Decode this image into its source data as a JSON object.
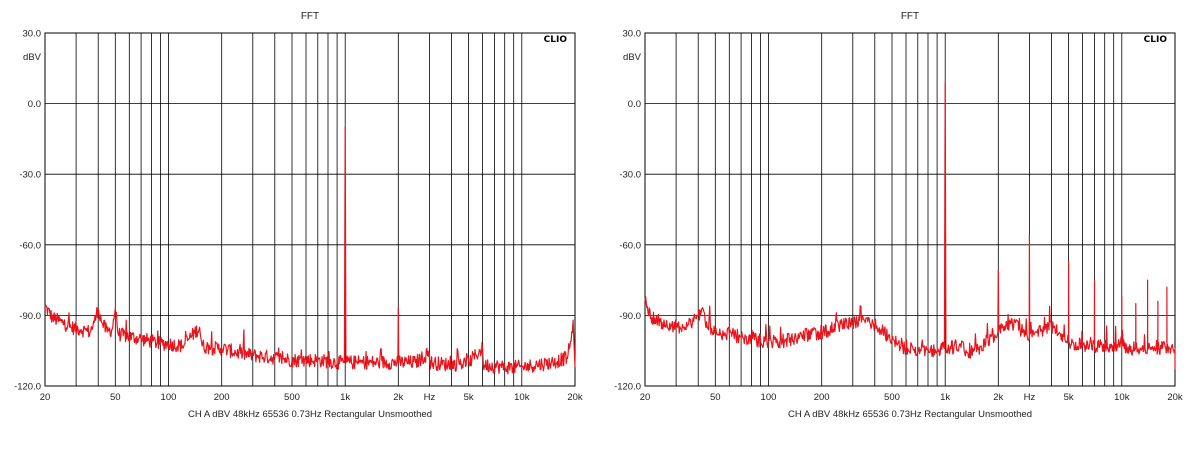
{
  "chart_data": [
    {
      "type": "line",
      "title": "FFT",
      "brand": "CLIO",
      "ylabel": "dBV",
      "xscale": "log",
      "xlim": [
        20,
        20000
      ],
      "ylim": [
        -120,
        30
      ],
      "grid": true,
      "yticks": [
        {
          "v": 30,
          "l": "30.0"
        },
        {
          "v": 0,
          "l": "0.0"
        },
        {
          "v": -30,
          "l": "-30.0"
        },
        {
          "v": -60,
          "l": "-60.0"
        },
        {
          "v": -90,
          "l": "-90.0"
        },
        {
          "v": -120,
          "l": "-120.0"
        }
      ],
      "xticks": [
        {
          "v": 20,
          "l": "20"
        },
        {
          "v": 50,
          "l": "50"
        },
        {
          "v": 100,
          "l": "100"
        },
        {
          "v": 200,
          "l": "200"
        },
        {
          "v": 500,
          "l": "500"
        },
        {
          "v": 1000,
          "l": "1k"
        },
        {
          "v": 2000,
          "l": "2k"
        },
        {
          "v": 3000,
          "l": "Hz"
        },
        {
          "v": 5000,
          "l": "5k"
        },
        {
          "v": 10000,
          "l": "10k"
        },
        {
          "v": 20000,
          "l": "20k"
        }
      ],
      "footer": "CH A   dBV   48kHz   65536   0.73Hz   Rectangular   Unsmoothed",
      "series": [
        {
          "color": "#e8141c",
          "points": [
            [
              20,
              -86
            ],
            [
              22,
              -91
            ],
            [
              25,
              -93
            ],
            [
              28,
              -95
            ],
            [
              32,
              -96
            ],
            [
              36,
              -97
            ],
            [
              38,
              -93
            ],
            [
              40,
              -87
            ],
            [
              42,
              -93
            ],
            [
              45,
              -97
            ],
            [
              48,
              -96
            ],
            [
              50,
              -87
            ],
            [
              52,
              -98
            ],
            [
              60,
              -99
            ],
            [
              70,
              -100
            ],
            [
              80,
              -101
            ],
            [
              90,
              -102
            ],
            [
              100,
              -102
            ],
            [
              120,
              -103
            ],
            [
              150,
              -95
            ],
            [
              155,
              -103
            ],
            [
              180,
              -104
            ],
            [
              200,
              -104
            ],
            [
              250,
              -106
            ],
            [
              300,
              -107
            ],
            [
              400,
              -108
            ],
            [
              500,
              -109
            ],
            [
              700,
              -109
            ],
            [
              900,
              -110
            ],
            [
              990,
              -110
            ],
            [
              1000,
              -10
            ],
            [
              1010,
              -110
            ],
            [
              1200,
              -110
            ],
            [
              1500,
              -110
            ],
            [
              1990,
              -110
            ],
            [
              2000,
              -87
            ],
            [
              2010,
              -110
            ],
            [
              2500,
              -110
            ],
            [
              3000,
              -106
            ],
            [
              3010,
              -110
            ],
            [
              4000,
              -111
            ],
            [
              5000,
              -110
            ],
            [
              6000,
              -104
            ],
            [
              6050,
              -111
            ],
            [
              8000,
              -112
            ],
            [
              10000,
              -112
            ],
            [
              12000,
              -111
            ],
            [
              15000,
              -110
            ],
            [
              18000,
              -108
            ],
            [
              19000,
              -101
            ],
            [
              19500,
              -92
            ],
            [
              20000,
              -112
            ]
          ]
        }
      ]
    },
    {
      "type": "line",
      "title": "FFT",
      "brand": "CLIO",
      "ylabel": "dBV",
      "xscale": "log",
      "xlim": [
        20,
        20000
      ],
      "ylim": [
        -120,
        30
      ],
      "grid": true,
      "yticks": [
        {
          "v": 30,
          "l": "30.0"
        },
        {
          "v": 0,
          "l": "0.0"
        },
        {
          "v": -30,
          "l": "-30.0"
        },
        {
          "v": -60,
          "l": "-60.0"
        },
        {
          "v": -90,
          "l": "-90.0"
        },
        {
          "v": -120,
          "l": "-120.0"
        }
      ],
      "xticks": [
        {
          "v": 20,
          "l": "20"
        },
        {
          "v": 50,
          "l": "50"
        },
        {
          "v": 100,
          "l": "100"
        },
        {
          "v": 200,
          "l": "200"
        },
        {
          "v": 500,
          "l": "500"
        },
        {
          "v": 1000,
          "l": "1k"
        },
        {
          "v": 2000,
          "l": "2k"
        },
        {
          "v": 3000,
          "l": "Hz"
        },
        {
          "v": 5000,
          "l": "5k"
        },
        {
          "v": 10000,
          "l": "10k"
        },
        {
          "v": 20000,
          "l": "20k"
        }
      ],
      "footer": "CH A   dBV   48kHz   65536   0.73Hz   Rectangular   Unsmoothed",
      "series": [
        {
          "color": "#e8141c",
          "points": [
            [
              20,
              -84
            ],
            [
              22,
              -91
            ],
            [
              25,
              -93
            ],
            [
              30,
              -95
            ],
            [
              35,
              -94
            ],
            [
              40,
              -90
            ],
            [
              42,
              -87
            ],
            [
              45,
              -95
            ],
            [
              50,
              -97
            ],
            [
              60,
              -98
            ],
            [
              70,
              -99
            ],
            [
              80,
              -100
            ],
            [
              100,
              -101
            ],
            [
              120,
              -101
            ],
            [
              150,
              -99
            ],
            [
              200,
              -97
            ],
            [
              250,
              -95
            ],
            [
              300,
              -93
            ],
            [
              350,
              -92
            ],
            [
              400,
              -94
            ],
            [
              500,
              -100
            ],
            [
              600,
              -104
            ],
            [
              700,
              -105
            ],
            [
              800,
              -104
            ],
            [
              900,
              -105
            ],
            [
              990,
              -104
            ],
            [
              1000,
              9
            ],
            [
              1010,
              -104
            ],
            [
              1200,
              -103
            ],
            [
              1400,
              -106
            ],
            [
              1600,
              -103
            ],
            [
              1990,
              -97
            ],
            [
              2000,
              -71
            ],
            [
              2010,
              -97
            ],
            [
              2200,
              -95
            ],
            [
              2500,
              -93
            ],
            [
              2700,
              -97
            ],
            [
              2990,
              -100
            ],
            [
              3000,
              -56
            ],
            [
              3010,
              -98
            ],
            [
              3500,
              -96
            ],
            [
              4000,
              -95
            ],
            [
              4500,
              -98
            ],
            [
              4990,
              -100
            ],
            [
              5000,
              -67
            ],
            [
              5010,
              -101
            ],
            [
              6000,
              -103
            ],
            [
              6990,
              -102
            ],
            [
              7000,
              -75
            ],
            [
              7010,
              -103
            ],
            [
              8000,
              -103
            ],
            [
              9000,
              -103
            ],
            [
              9990,
              -102
            ],
            [
              10000,
              -82
            ],
            [
              10010,
              -103
            ],
            [
              11000,
              -104
            ],
            [
              11990,
              -104
            ],
            [
              12000,
              -85
            ],
            [
              12010,
              -104
            ],
            [
              13000,
              -104
            ],
            [
              13990,
              -104
            ],
            [
              14000,
              -75
            ],
            [
              14010,
              -104
            ],
            [
              15000,
              -104
            ],
            [
              15990,
              -104
            ],
            [
              16000,
              -84
            ],
            [
              16010,
              -104
            ],
            [
              17000,
              -104
            ],
            [
              17990,
              -104
            ],
            [
              18000,
              -78
            ],
            [
              18010,
              -105
            ],
            [
              19000,
              -104
            ],
            [
              19990,
              -104
            ],
            [
              20000,
              -113
            ]
          ]
        }
      ]
    }
  ]
}
